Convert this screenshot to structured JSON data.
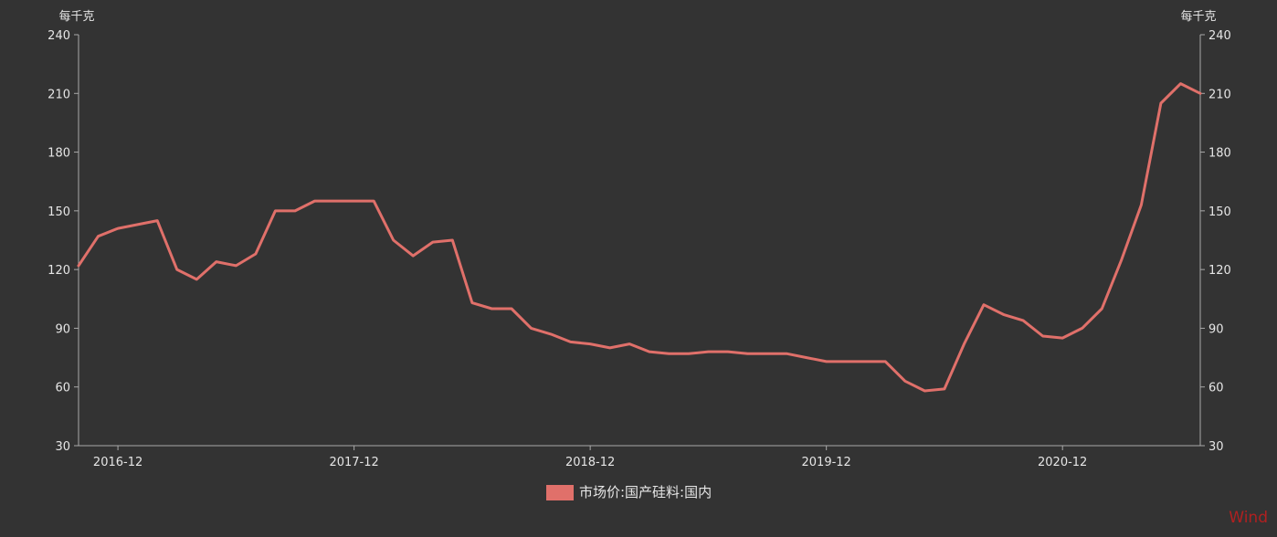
{
  "chart_data": {
    "type": "line",
    "unit_left": "每千克",
    "unit_right": "每千克",
    "ylim": [
      30,
      240
    ],
    "y_ticks": [
      30,
      60,
      90,
      120,
      150,
      180,
      210,
      240
    ],
    "x_tick_labels": [
      "2016-12",
      "2017-12",
      "2018-12",
      "2019-12",
      "2020-12"
    ],
    "x_range": [
      "2016-10",
      "2021-07"
    ],
    "grid": false,
    "legend_position": "bottom-center",
    "series": [
      {
        "name": "市场价:国产硅料:国内",
        "color": "#e0706a",
        "x": [
          "2016-10",
          "2016-11",
          "2016-12",
          "2017-01",
          "2017-02",
          "2017-03",
          "2017-04",
          "2017-05",
          "2017-06",
          "2017-07",
          "2017-08",
          "2017-09",
          "2017-10",
          "2017-11",
          "2017-12",
          "2018-01",
          "2018-02",
          "2018-03",
          "2018-04",
          "2018-05",
          "2018-06",
          "2018-07",
          "2018-08",
          "2018-09",
          "2018-10",
          "2018-11",
          "2018-12",
          "2019-01",
          "2019-02",
          "2019-03",
          "2019-04",
          "2019-05",
          "2019-06",
          "2019-07",
          "2019-08",
          "2019-09",
          "2019-10",
          "2019-11",
          "2019-12",
          "2020-01",
          "2020-02",
          "2020-03",
          "2020-04",
          "2020-05",
          "2020-06",
          "2020-07",
          "2020-08",
          "2020-09",
          "2020-10",
          "2020-11",
          "2020-12",
          "2021-01",
          "2021-02",
          "2021-03",
          "2021-04",
          "2021-05",
          "2021-06",
          "2021-07"
        ],
        "values": [
          122,
          137,
          141,
          143,
          145,
          120,
          115,
          124,
          122,
          128,
          150,
          150,
          155,
          155,
          155,
          155,
          135,
          127,
          134,
          135,
          103,
          100,
          100,
          90,
          87,
          83,
          82,
          80,
          82,
          78,
          77,
          77,
          78,
          78,
          77,
          77,
          77,
          75,
          73,
          73,
          73,
          73,
          63,
          58,
          59,
          82,
          102,
          97,
          94,
          86,
          85,
          90,
          100,
          125,
          153,
          205,
          215,
          210
        ]
      }
    ],
    "watermark": "Wind"
  }
}
